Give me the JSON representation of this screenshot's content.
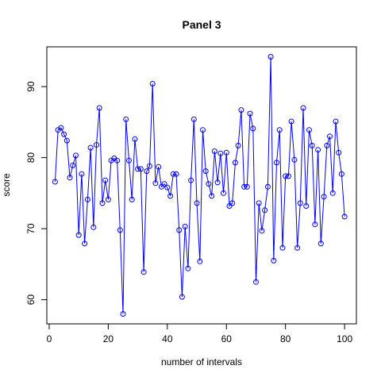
{
  "chart_data": {
    "type": "line",
    "title": "Panel 3",
    "xlabel": "number of intervals",
    "ylabel": "score",
    "xlim": [
      -0.8,
      104.0
    ],
    "ylim": [
      56.6,
      95.6
    ],
    "xticks": [
      "0",
      "20",
      "40",
      "60",
      "80",
      "100"
    ],
    "yticks": [
      "60",
      "70",
      "80",
      "90"
    ],
    "grid": false,
    "legend": "none",
    "color": "#0000ff",
    "marker": "open-circle",
    "x": [
      2,
      3,
      4,
      5,
      6,
      7,
      8,
      9,
      10,
      11,
      12,
      13,
      14,
      15,
      16,
      17,
      18,
      19,
      20,
      21,
      22,
      23,
      24,
      25,
      26,
      27,
      28,
      29,
      30,
      31,
      32,
      33,
      34,
      35,
      36,
      37,
      38,
      39,
      40,
      41,
      42,
      43,
      44,
      45,
      46,
      47,
      48,
      49,
      50,
      51,
      52,
      53,
      54,
      55,
      56,
      57,
      58,
      59,
      60,
      61,
      62,
      63,
      64,
      65,
      66,
      67,
      68,
      69,
      70,
      71,
      72,
      73,
      74,
      75,
      76,
      77,
      78,
      79,
      80,
      81,
      82,
      83,
      84,
      85,
      86,
      87,
      88,
      89,
      90,
      91,
      92,
      93,
      94,
      95,
      96,
      97,
      98,
      99,
      100
    ],
    "y": [
      76.6,
      83.9,
      84.2,
      83.3,
      82.4,
      77.2,
      78.9,
      80.3,
      69.1,
      77.7,
      67.9,
      74.1,
      81.4,
      70.2,
      81.8,
      87.0,
      73.6,
      76.8,
      74.1,
      79.6,
      79.9,
      79.6,
      69.8,
      58.0,
      85.4,
      79.6,
      74.1,
      82.6,
      78.4,
      78.4,
      63.9,
      78.1,
      78.8,
      90.4,
      76.4,
      78.7,
      75.9,
      76.3,
      75.8,
      74.6,
      77.7,
      77.7,
      69.8,
      60.4,
      70.3,
      64.4,
      76.8,
      85.4,
      73.6,
      65.4,
      83.9,
      78.1,
      76.3,
      74.6,
      80.9,
      76.5,
      80.6,
      75.0,
      80.7,
      73.2,
      73.6,
      79.3,
      81.7,
      86.7,
      75.9,
      75.9,
      86.2,
      84.1,
      62.5,
      73.6,
      69.7,
      72.6,
      75.9,
      94.2,
      65.5,
      79.3,
      83.9,
      67.3,
      77.4,
      77.4,
      85.1,
      79.7,
      67.3,
      73.6,
      87.0,
      73.2,
      83.9,
      81.7,
      70.6,
      81.1,
      67.9,
      74.5,
      81.7,
      83.0,
      75.0,
      85.1,
      80.7,
      77.7,
      71.7
    ]
  }
}
